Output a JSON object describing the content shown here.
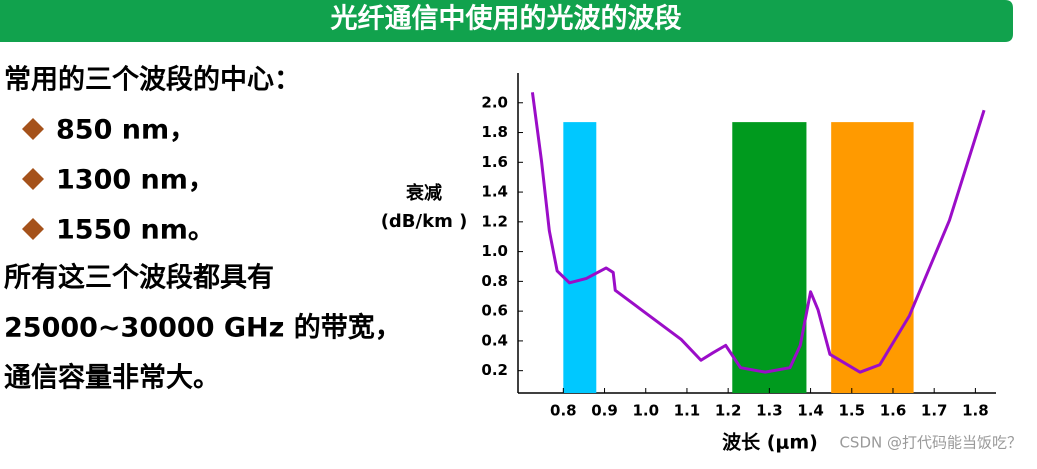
{
  "header": {
    "title": "光纤通信中使用的光波的波段"
  },
  "body": {
    "intro": "常用的三个波段的中心：",
    "bullets": [
      "850 nm，",
      "1300 nm，",
      "1550 nm。"
    ],
    "lines": [
      "所有这三个波段都具有",
      "25000~30000 GHz 的带宽，",
      "通信容量非常大。"
    ]
  },
  "watermark": "CSDN @打代码能当饭吃？",
  "chart_data": {
    "type": "line",
    "ylabel": [
      "衰减",
      "(dB/km )"
    ],
    "xlabel": "波长 (μm)",
    "x": [
      0.725,
      0.747,
      0.766,
      0.785,
      0.815,
      0.856,
      0.904,
      0.921,
      0.926,
      0.989,
      1.086,
      1.134,
      1.163,
      1.194,
      1.23,
      1.29,
      1.35,
      1.375,
      1.4,
      1.418,
      1.447,
      1.52,
      1.568,
      1.64,
      1.737,
      1.821
    ],
    "series": [
      {
        "color": "#9b0dc8",
        "values": [
          2.07,
          1.61,
          1.14,
          0.87,
          0.79,
          0.82,
          0.89,
          0.86,
          0.74,
          0.61,
          0.41,
          0.27,
          0.32,
          0.37,
          0.22,
          0.19,
          0.22,
          0.37,
          0.73,
          0.61,
          0.31,
          0.19,
          0.24,
          0.57,
          1.21,
          1.95
        ]
      }
    ],
    "bands": [
      {
        "color": "#00c8ff",
        "start": 0.8,
        "end": 0.88,
        "top": 1.87
      },
      {
        "color": "#009a1e",
        "start": 1.21,
        "end": 1.39,
        "top": 1.87
      },
      {
        "color": "#ff9a00",
        "start": 1.45,
        "end": 1.65,
        "top": 1.87
      }
    ],
    "xlim": [
      0.69,
      1.85
    ],
    "ylim": [
      0.05,
      2.2
    ],
    "xticks": [
      0.8,
      0.9,
      {
        "value": 1,
        "label": "1.0"
      },
      1.1,
      1.2,
      1.3,
      1.4,
      1.5,
      1.6,
      1.7,
      1.8
    ],
    "yticks": [
      0.2,
      0.4,
      0.6,
      0.8,
      {
        "value": 1,
        "label": "1.0"
      },
      1.2,
      1.4,
      1.6,
      1.8,
      {
        "value": 2,
        "label": "2.0"
      }
    ]
  }
}
